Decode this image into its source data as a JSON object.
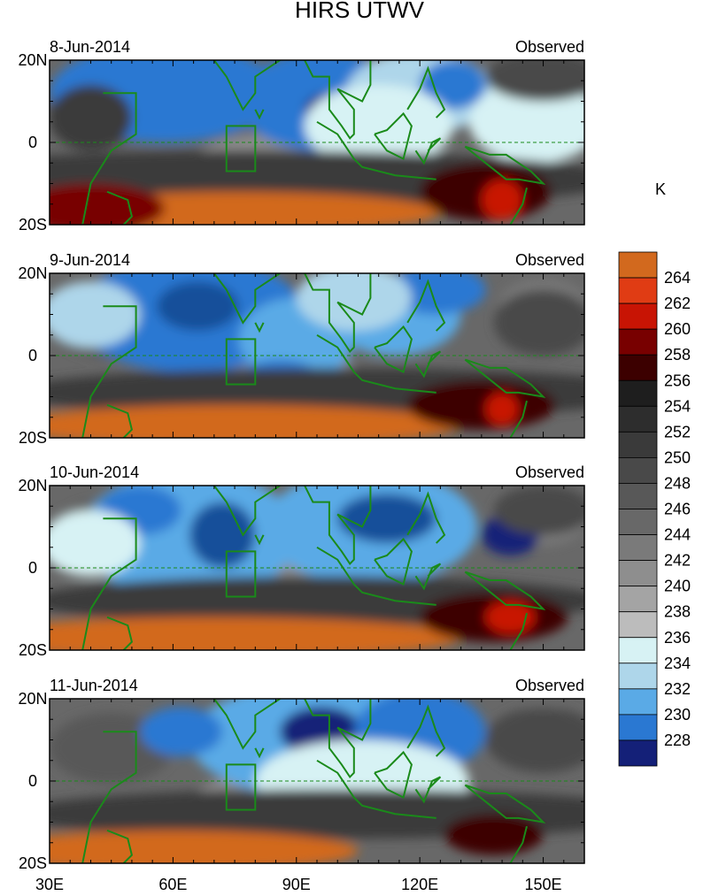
{
  "chart_data": {
    "type": "heatmap",
    "title": "HIRS UTWV",
    "units": "K",
    "xlabel": "",
    "ylabel": "",
    "x_ticks": [
      "30E",
      "60E",
      "90E",
      "120E",
      "150E"
    ],
    "x_tick_values": [
      30,
      60,
      90,
      120,
      150
    ],
    "x_range": [
      30,
      160
    ],
    "y_ticks": [
      "20N",
      "0",
      "20S"
    ],
    "y_tick_values": [
      20,
      0,
      -20
    ],
    "y_range": [
      -20,
      20
    ],
    "colorbar": {
      "labels": [
        "264",
        "262",
        "260",
        "258",
        "256",
        "254",
        "252",
        "250",
        "248",
        "246",
        "244",
        "242",
        "240",
        "238",
        "236",
        "234",
        "232",
        "230",
        "228"
      ],
      "colors": [
        "#d2691e",
        "#e03c14",
        "#c81404",
        "#780000",
        "#3c0000",
        "#1e1e1e",
        "#2d2d2d",
        "#3a3a3a",
        "#494949",
        "#585858",
        "#686868",
        "#7a7a7a",
        "#8e8e8e",
        "#a4a4a4",
        "#bcbcbc",
        "#d7f2f4",
        "#aed6ea",
        "#5aaae6",
        "#2a78d2",
        "#14509a",
        "#142078"
      ]
    },
    "panels": [
      {
        "date": "8-Jun-2014",
        "label": "Observed",
        "blobs": [
          {
            "lon": 58,
            "lat": 12,
            "w": 28,
            "h": 12,
            "v": 231
          },
          {
            "lon": 72,
            "lat": 10,
            "w": 10,
            "h": 6,
            "v": 230
          },
          {
            "lon": 96,
            "lat": 10,
            "w": 20,
            "h": 12,
            "v": 230
          },
          {
            "lon": 98,
            "lat": 8,
            "w": 6,
            "h": 4,
            "v": 228
          },
          {
            "lon": 120,
            "lat": 12,
            "w": 18,
            "h": 10,
            "v": 235
          },
          {
            "lon": 128,
            "lat": 14,
            "w": 8,
            "h": 6,
            "v": 231
          },
          {
            "lon": 148,
            "lat": 5,
            "w": 16,
            "h": 10,
            "v": 236
          },
          {
            "lon": 110,
            "lat": 4,
            "w": 18,
            "h": 10,
            "v": 237
          },
          {
            "lon": 40,
            "lat": 6,
            "w": 10,
            "h": 8,
            "v": 252
          },
          {
            "lon": 150,
            "lat": 16,
            "w": 14,
            "h": 6,
            "v": 250
          },
          {
            "lon": 80,
            "lat": -9,
            "w": 90,
            "h": 7,
            "v": 252
          },
          {
            "lon": 75,
            "lat": -17,
            "w": 50,
            "h": 5,
            "v": 264
          },
          {
            "lon": 40,
            "lat": -16,
            "w": 18,
            "h": 6,
            "v": 260
          },
          {
            "lon": 136,
            "lat": -12,
            "w": 16,
            "h": 7,
            "v": 259
          },
          {
            "lon": 140,
            "lat": -14,
            "w": 5,
            "h": 5,
            "v": 262
          }
        ]
      },
      {
        "date": "9-Jun-2014",
        "label": "Observed",
        "blobs": [
          {
            "lon": 64,
            "lat": 10,
            "w": 28,
            "h": 14,
            "v": 231
          },
          {
            "lon": 66,
            "lat": 12,
            "w": 10,
            "h": 6,
            "v": 229
          },
          {
            "lon": 90,
            "lat": 4,
            "w": 14,
            "h": 10,
            "v": 233
          },
          {
            "lon": 86,
            "lat": -6,
            "w": 10,
            "h": 5,
            "v": 231
          },
          {
            "lon": 114,
            "lat": 10,
            "w": 16,
            "h": 10,
            "v": 232
          },
          {
            "lon": 124,
            "lat": 16,
            "w": 12,
            "h": 6,
            "v": 230
          },
          {
            "lon": 104,
            "lat": 14,
            "w": 14,
            "h": 8,
            "v": 235
          },
          {
            "lon": 40,
            "lat": 10,
            "w": 12,
            "h": 8,
            "v": 235
          },
          {
            "lon": 150,
            "lat": 8,
            "w": 12,
            "h": 8,
            "v": 250
          },
          {
            "lon": 100,
            "lat": -9,
            "w": 80,
            "h": 6,
            "v": 252
          },
          {
            "lon": 75,
            "lat": -17,
            "w": 55,
            "h": 5,
            "v": 264
          },
          {
            "lon": 135,
            "lat": -12,
            "w": 18,
            "h": 6,
            "v": 259
          },
          {
            "lon": 140,
            "lat": -13,
            "w": 4,
            "h": 4,
            "v": 262
          }
        ]
      },
      {
        "date": "10-Jun-2014",
        "label": "Observed",
        "blobs": [
          {
            "lon": 64,
            "lat": 8,
            "w": 26,
            "h": 16,
            "v": 232
          },
          {
            "lon": 72,
            "lat": 8,
            "w": 8,
            "h": 8,
            "v": 229
          },
          {
            "lon": 52,
            "lat": 14,
            "w": 10,
            "h": 6,
            "v": 230
          },
          {
            "lon": 108,
            "lat": 10,
            "w": 26,
            "h": 14,
            "v": 233
          },
          {
            "lon": 112,
            "lat": 12,
            "w": 12,
            "h": 6,
            "v": 229
          },
          {
            "lon": 142,
            "lat": 8,
            "w": 7,
            "h": 5,
            "v": 228
          },
          {
            "lon": 40,
            "lat": 6,
            "w": 12,
            "h": 8,
            "v": 236
          },
          {
            "lon": 95,
            "lat": -8,
            "w": 70,
            "h": 6,
            "v": 252
          },
          {
            "lon": 70,
            "lat": -17,
            "w": 60,
            "h": 5,
            "v": 264
          },
          {
            "lon": 138,
            "lat": -12,
            "w": 18,
            "h": 6,
            "v": 259
          },
          {
            "lon": 142,
            "lat": -12,
            "w": 6,
            "h": 4,
            "v": 263
          },
          {
            "lon": 150,
            "lat": 14,
            "w": 12,
            "h": 6,
            "v": 250
          }
        ]
      },
      {
        "date": "11-Jun-2014",
        "label": "Observed",
        "blobs": [
          {
            "lon": 96,
            "lat": 10,
            "w": 32,
            "h": 14,
            "v": 233
          },
          {
            "lon": 96,
            "lat": 12,
            "w": 10,
            "h": 6,
            "v": 228
          },
          {
            "lon": 120,
            "lat": 12,
            "w": 16,
            "h": 10,
            "v": 231
          },
          {
            "lon": 62,
            "lat": 12,
            "w": 10,
            "h": 6,
            "v": 231
          },
          {
            "lon": 106,
            "lat": 0,
            "w": 26,
            "h": 10,
            "v": 236
          },
          {
            "lon": 150,
            "lat": 10,
            "w": 14,
            "h": 8,
            "v": 250
          },
          {
            "lon": 100,
            "lat": -8,
            "w": 80,
            "h": 6,
            "v": 253
          },
          {
            "lon": 60,
            "lat": -17,
            "w": 45,
            "h": 5,
            "v": 264
          },
          {
            "lon": 138,
            "lat": -13,
            "w": 12,
            "h": 5,
            "v": 258
          }
        ]
      }
    ],
    "box": {
      "lon": [
        73,
        80
      ],
      "lat": [
        -7,
        4
      ]
    }
  }
}
